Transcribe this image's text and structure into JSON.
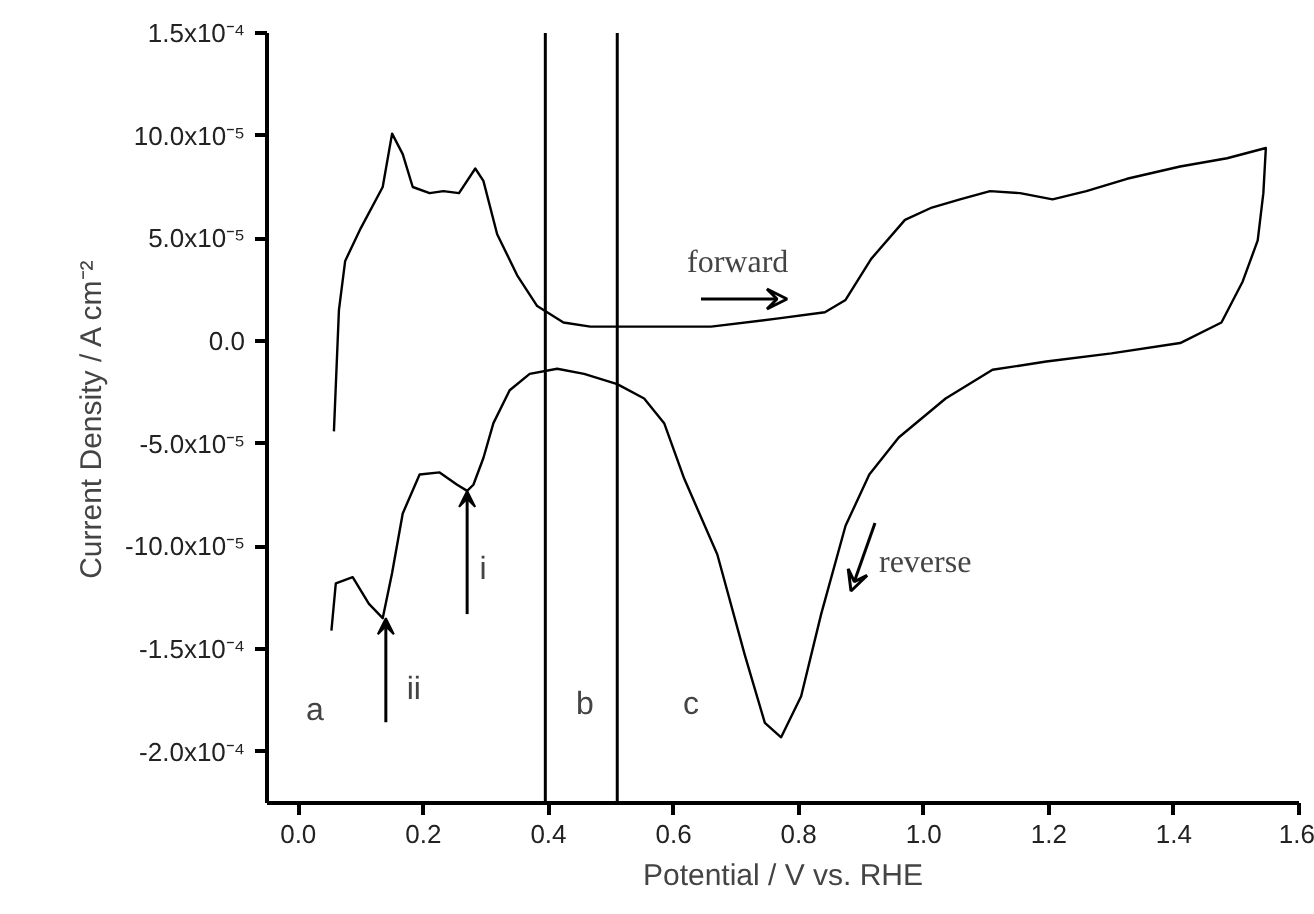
{
  "chart_data": {
    "type": "line",
    "xlabel": "Potential / V vs. RHE",
    "ylabel": "Current Density / A cm⁻²",
    "x": [
      0.057,
      0.065,
      0.075,
      0.1,
      0.135,
      0.15,
      0.167,
      0.183,
      0.21,
      0.232,
      0.257,
      0.283,
      0.296,
      0.318,
      0.35,
      0.382,
      0.424,
      0.467,
      0.51,
      0.553,
      0.66,
      0.768,
      0.842,
      0.875,
      0.916,
      0.97,
      1.013,
      1.058,
      1.106,
      1.154,
      1.206,
      1.26,
      1.325,
      1.41,
      1.485,
      1.547,
      1.543,
      1.534,
      1.51,
      1.476,
      1.41,
      1.3,
      1.196,
      1.11,
      1.035,
      0.96,
      0.913,
      0.875,
      0.836,
      0.804,
      0.772,
      0.746,
      0.714,
      0.67,
      0.617,
      0.585,
      0.553,
      0.51,
      0.457,
      0.414,
      0.37,
      0.338,
      0.312,
      0.296,
      0.28,
      0.27,
      0.254,
      0.226,
      0.194,
      0.167,
      0.15,
      0.135,
      0.113,
      0.087,
      0.06,
      0.053
    ],
    "series": [
      {
        "color": "#000000",
        "values": [
          -4.4e-05,
          1.5e-05,
          3.9e-05,
          5.5e-05,
          7.5e-05,
          0.000101,
          9.1e-05,
          7.5e-05,
          7.2e-05,
          7.3e-05,
          7.2e-05,
          8.4e-05,
          7.8e-05,
          5.2e-05,
          3.2e-05,
          1.7e-05,
          9e-06,
          7e-06,
          7e-06,
          7e-06,
          7e-06,
          1.1e-05,
          1.4e-05,
          2e-05,
          4e-05,
          5.9e-05,
          6.5e-05,
          6.9e-05,
          7.3e-05,
          7.2e-05,
          6.9e-05,
          7.3e-05,
          7.9e-05,
          8.5e-05,
          8.9e-05,
          9.4e-05,
          7.2e-05,
          4.9e-05,
          2.9e-05,
          9e-06,
          -1e-06,
          -6e-06,
          -1e-05,
          -1.4e-05,
          -2.8e-05,
          -4.7e-05,
          -6.5e-05,
          -9e-05,
          -0.000133,
          -0.000173,
          -0.000193,
          -0.000186,
          -0.000153,
          -0.000104,
          -6.7e-05,
          -4e-05,
          -2.8e-05,
          -2.1e-05,
          -1.6e-05,
          -1.35e-05,
          -1.6e-05,
          -2.4e-05,
          -4e-05,
          -5.7e-05,
          -7e-05,
          -7.3e-05,
          -7e-05,
          -6.4e-05,
          -6.5e-05,
          -8.4e-05,
          -0.000113,
          -0.000135,
          -0.000128,
          -0.000115,
          -0.000118,
          -0.000141
        ]
      }
    ],
    "xlim": [
      -0.05,
      1.6
    ],
    "ylim": [
      -0.000225,
      0.00015
    ],
    "xticks": [
      {
        "value": 0,
        "label": "0.0"
      },
      {
        "value": 0.2,
        "label": "0.2"
      },
      {
        "value": 0.4,
        "label": "0.4"
      },
      {
        "value": 0.6,
        "label": "0.6"
      },
      {
        "value": 0.8,
        "label": "0.8"
      },
      {
        "value": 1.0,
        "label": "1.0"
      },
      {
        "value": 1.2,
        "label": "1.2"
      },
      {
        "value": 1.4,
        "label": "1.4"
      },
      {
        "value": 1.6,
        "label": "1.6"
      }
    ],
    "yticks": [
      {
        "value": 0.00015,
        "label": "1.5x10⁻⁴"
      },
      {
        "value": 0.0001,
        "label": "10.0x10⁻⁵"
      },
      {
        "value": 5e-05,
        "label": "5.0x10⁻⁵"
      },
      {
        "value": 0,
        "label": "0.0"
      },
      {
        "value": -5e-05,
        "label": "-5.0x10⁻⁵"
      },
      {
        "value": -0.0001,
        "label": "-10.0x10⁻⁵"
      },
      {
        "value": -0.00015,
        "label": "-1.5x10⁻⁴"
      },
      {
        "value": -0.0002,
        "label": "-2.0x10⁻⁴"
      }
    ],
    "ref_lines": [
      {
        "axis": "x",
        "value": 0.395,
        "color": "#000000"
      },
      {
        "axis": "x",
        "value": 0.51,
        "color": "#000000"
      }
    ],
    "annotations": [
      "forward",
      "reverse",
      {
        "text": "i",
        "x": 0.27,
        "y": -7.3e-05
      },
      {
        "text": "ii",
        "x": 0.14,
        "y": -0.000135
      },
      "a",
      "b",
      "c"
    ],
    "grid": false
  }
}
